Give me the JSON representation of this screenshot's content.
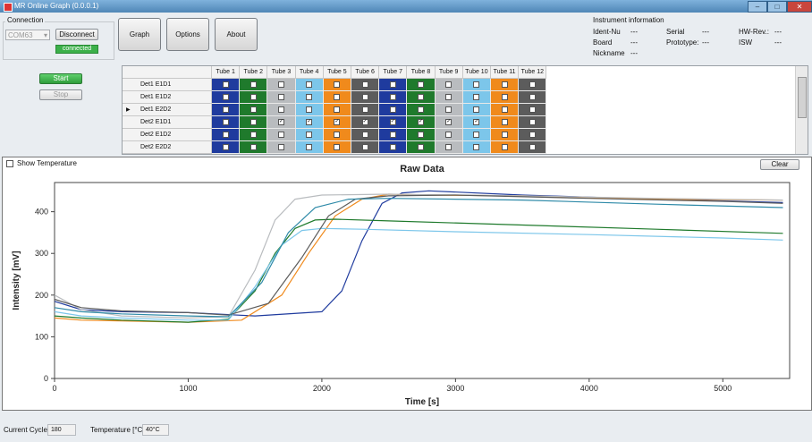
{
  "window": {
    "title": "MR Online Graph (0.0.0.1)"
  },
  "connection": {
    "group_label": "Connection",
    "port": "COM63",
    "disconnect_label": "Disconnect",
    "status": "connected"
  },
  "toolbar": {
    "graph_label": "Graph",
    "options_label": "Options",
    "about_label": "About"
  },
  "controls": {
    "start_label": "Start",
    "stop_label": "Stop"
  },
  "instrument": {
    "title": "Instrument information",
    "fields": [
      {
        "label": "Ident-Nu",
        "value": "---"
      },
      {
        "label": "Serial",
        "value": "---"
      },
      {
        "label": "HW-Rev.:",
        "value": "---"
      },
      {
        "label": "Board",
        "value": "---"
      },
      {
        "label": "Prototype:",
        "value": "---"
      },
      {
        "label": "ISW",
        "value": "---"
      },
      {
        "label": "Nickname",
        "value": "---"
      }
    ]
  },
  "grid": {
    "columns": [
      "Tube 1",
      "Tube 2",
      "Tube 3",
      "Tube 4",
      "Tube 5",
      "Tube 6",
      "Tube 7",
      "Tube 8",
      "Tube 9",
      "Tube 10",
      "Tube 11",
      "Tube 12"
    ],
    "column_colors": [
      "#1f3b9e",
      "#1f7a2c",
      "#b9bcbf",
      "#7cc6ea",
      "#f08a1c",
      "#5c5c5c",
      "#1f3b9e",
      "#1f7a2c",
      "#b9bcbf",
      "#7cc6ea",
      "#f08a1c",
      "#5c5c5c"
    ],
    "rows": [
      {
        "label": "Det1 E1D1",
        "current": false,
        "checked": [
          false,
          false,
          false,
          false,
          false,
          false,
          false,
          false,
          false,
          false,
          false,
          false
        ]
      },
      {
        "label": "Det1 E1D2",
        "current": false,
        "checked": [
          false,
          false,
          false,
          false,
          false,
          false,
          false,
          false,
          false,
          false,
          false,
          false
        ]
      },
      {
        "label": "Det1 E2D2",
        "current": true,
        "checked": [
          false,
          false,
          false,
          false,
          false,
          false,
          false,
          false,
          false,
          false,
          false,
          false
        ]
      },
      {
        "label": "Det2 E1D1",
        "current": false,
        "checked": [
          false,
          false,
          true,
          true,
          true,
          true,
          true,
          true,
          true,
          true,
          false,
          false
        ]
      },
      {
        "label": "Det2 E1D2",
        "current": false,
        "checked": [
          false,
          false,
          false,
          false,
          false,
          false,
          false,
          false,
          false,
          false,
          false,
          false
        ]
      },
      {
        "label": "Det2 E2D2",
        "current": false,
        "checked": [
          false,
          false,
          false,
          false,
          false,
          false,
          false,
          false,
          false,
          false,
          false,
          false
        ]
      }
    ]
  },
  "graph_panel": {
    "show_temperature_label": "Show Temperature",
    "clear_label": "Clear"
  },
  "chart_data": {
    "type": "line",
    "title": "Raw Data",
    "xlabel": "Time [s]",
    "ylabel": "Intensity [mV]",
    "xlim": [
      0,
      5500
    ],
    "ylim": [
      0,
      470
    ],
    "xticks": [
      0,
      1000,
      2000,
      3000,
      4000,
      5000
    ],
    "yticks": [
      0,
      100,
      200,
      300,
      400
    ],
    "grid": false,
    "legend": "none",
    "series": [
      {
        "color": "#1f3b9e",
        "x": [
          0,
          200,
          500,
          1000,
          1500,
          2000,
          2150,
          2300,
          2450,
          2600,
          2800,
          3500,
          4500,
          5450
        ],
        "y": [
          185,
          165,
          160,
          158,
          150,
          160,
          210,
          330,
          420,
          445,
          450,
          440,
          430,
          422
        ]
      },
      {
        "color": "#f08a1c",
        "x": [
          0,
          200,
          500,
          1000,
          1400,
          1700,
          1900,
          2100,
          2300,
          2500,
          2800,
          3500,
          4500,
          5450
        ],
        "y": [
          145,
          140,
          138,
          135,
          140,
          200,
          300,
          390,
          430,
          442,
          440,
          438,
          430,
          428
        ]
      },
      {
        "color": "#1f7a2c",
        "x": [
          0,
          200,
          500,
          1000,
          1300,
          1500,
          1650,
          1800,
          1950,
          2100,
          2500,
          3500,
          4500,
          5450
        ],
        "y": [
          150,
          145,
          140,
          135,
          142,
          210,
          300,
          360,
          380,
          382,
          378,
          368,
          358,
          348
        ]
      },
      {
        "color": "#7cc6ea",
        "x": [
          0,
          200,
          500,
          1000,
          1300,
          1500,
          1700,
          1850,
          2000,
          2300,
          3000,
          4000,
          5000,
          5450
        ],
        "y": [
          160,
          150,
          145,
          140,
          140,
          220,
          320,
          355,
          360,
          358,
          352,
          345,
          337,
          332
        ]
      },
      {
        "color": "#b9bcbf",
        "x": [
          0,
          200,
          500,
          1000,
          1300,
          1500,
          1650,
          1800,
          2000,
          2500,
          3500,
          4500,
          5450
        ],
        "y": [
          200,
          165,
          150,
          145,
          148,
          260,
          380,
          430,
          440,
          442,
          438,
          432,
          428
        ]
      },
      {
        "color": "#5c5c5c",
        "x": [
          0,
          200,
          500,
          1000,
          1300,
          1600,
          1850,
          2050,
          2250,
          2500,
          3000,
          4000,
          5000,
          5450
        ],
        "y": [
          190,
          170,
          162,
          158,
          152,
          180,
          290,
          390,
          430,
          438,
          440,
          432,
          425,
          420
        ]
      },
      {
        "color": "#2e8aa8",
        "x": [
          0,
          200,
          500,
          1000,
          1300,
          1550,
          1750,
          1950,
          2200,
          2500,
          3500,
          4500,
          5450
        ],
        "y": [
          170,
          160,
          155,
          150,
          148,
          230,
          350,
          410,
          430,
          432,
          428,
          418,
          410
        ]
      }
    ]
  },
  "footer": {
    "cycle_label": "Current Cycle",
    "cycle_value": "180",
    "temp_label": "Temperature [°C]",
    "temp_value": "40°C"
  }
}
